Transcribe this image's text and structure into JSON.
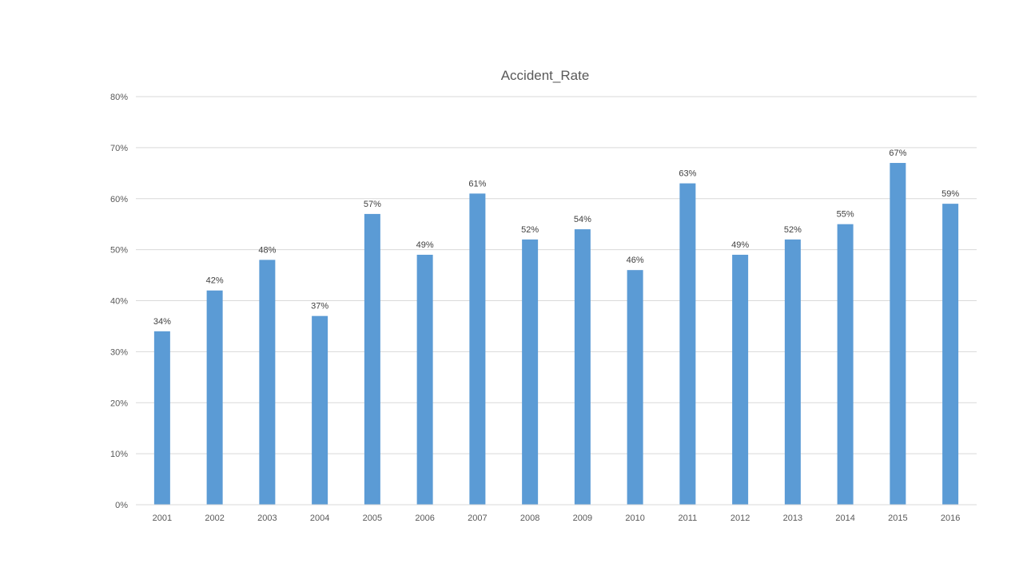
{
  "chart_data": {
    "type": "bar",
    "title": "Accident_Rate",
    "xlabel": "",
    "ylabel": "",
    "categories": [
      "2001",
      "2002",
      "2003",
      "2004",
      "2005",
      "2006",
      "2007",
      "2008",
      "2009",
      "2010",
      "2011",
      "2012",
      "2013",
      "2014",
      "2015",
      "2016"
    ],
    "values": [
      34,
      42,
      48,
      37,
      57,
      49,
      61,
      52,
      54,
      46,
      63,
      49,
      52,
      55,
      67,
      59
    ],
    "value_unit": "%",
    "data_labels": [
      "34%",
      "42%",
      "48%",
      "37%",
      "57%",
      "49%",
      "61%",
      "52%",
      "54%",
      "46%",
      "63%",
      "49%",
      "52%",
      "55%",
      "67%",
      "59%"
    ],
    "ylim": [
      0,
      80
    ],
    "yticks": [
      0,
      10,
      20,
      30,
      40,
      50,
      60,
      70,
      80
    ],
    "ytick_labels": [
      "0%",
      "10%",
      "20%",
      "30%",
      "40%",
      "50%",
      "60%",
      "70%",
      "80%"
    ],
    "grid": true,
    "legend": "none",
    "bar_color": "#5b9bd5"
  }
}
